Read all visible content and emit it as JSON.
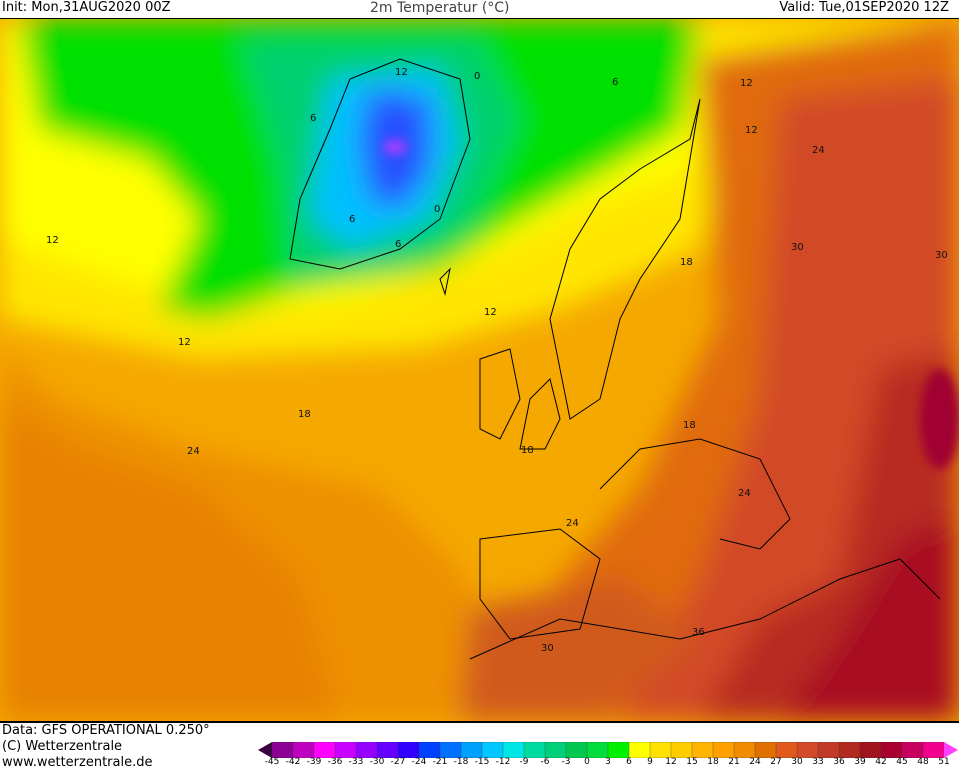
{
  "header": {
    "init": "Init: Mon,31AUG2020 00Z",
    "title": "2m Temperatur (°C)",
    "valid": "Valid: Tue,01SEP2020 12Z"
  },
  "footer": {
    "data": "Data: GFS OPERATIONAL 0.250°",
    "copyright": "(C) Wetterzentrale",
    "url": "www.wetterzentrale.de"
  },
  "colorbar": {
    "ticks": [
      "-45",
      "-42",
      "-39",
      "-36",
      "-33",
      "-30",
      "-27",
      "-24",
      "-21",
      "-18",
      "-15",
      "-12",
      "-9",
      "-6",
      "-3",
      "0",
      "3",
      "6",
      "9",
      "12",
      "15",
      "18",
      "21",
      "24",
      "27",
      "30",
      "33",
      "36",
      "39",
      "42",
      "45",
      "48",
      "51"
    ],
    "low_color": "#3a0040",
    "high_color": "#ff40ff",
    "colors": [
      "#5a0064",
      "#8c0096",
      "#c000c0",
      "#ff00ff",
      "#c800ff",
      "#9600ff",
      "#6400ff",
      "#3200ff",
      "#0040ff",
      "#0070ff",
      "#00a0ff",
      "#00c8ff",
      "#00e6e6",
      "#00dca0",
      "#00d078",
      "#00c850",
      "#00dc3c",
      "#00f000",
      "#ffff00",
      "#ffe000",
      "#ffcc00",
      "#ffb400",
      "#ffa000",
      "#f08c00",
      "#e07000",
      "#e05a1e",
      "#d24a28",
      "#c03c28",
      "#b02a20",
      "#a01420",
      "#a80030",
      "#c80060",
      "#f0008c"
    ]
  },
  "contour_labels": [
    "12",
    "0",
    "6",
    "12",
    "6",
    "12",
    "24",
    "0",
    "6",
    "6",
    "12",
    "30",
    "30",
    "18",
    "12",
    "12",
    "18",
    "24",
    "18",
    "18",
    "24",
    "24",
    "36",
    "30"
  ]
}
